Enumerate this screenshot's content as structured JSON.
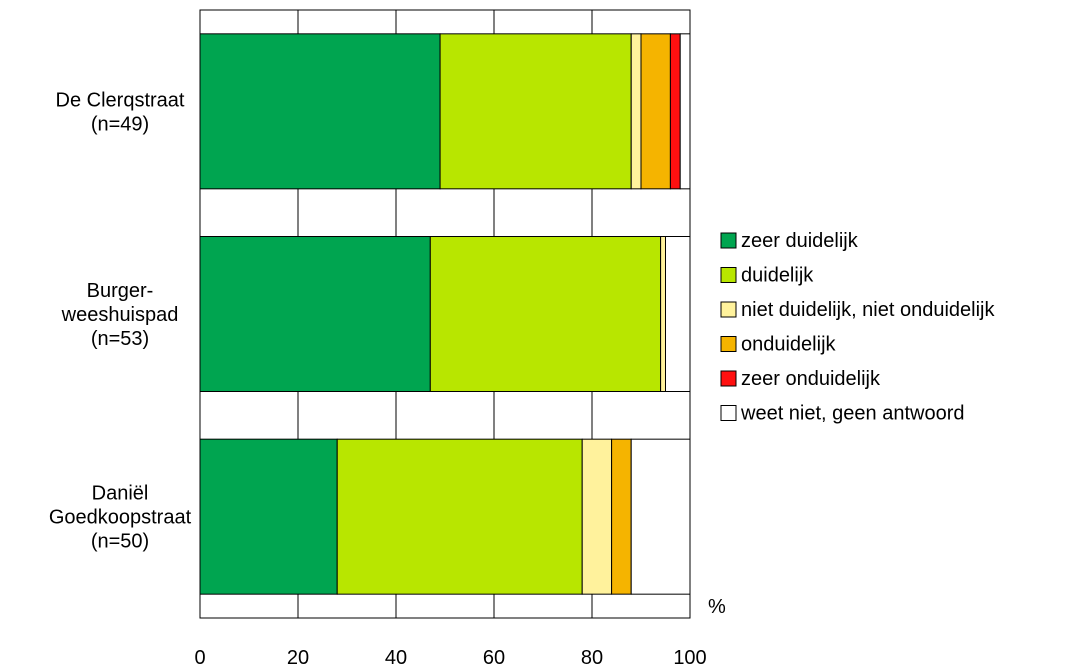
{
  "chart_data": {
    "type": "bar",
    "orientation": "horizontal",
    "stacked": true,
    "categories": [
      [
        "De Clerqstraat",
        "(n=49)"
      ],
      [
        "Burger-",
        "weeshuispad",
        "(n=53)"
      ],
      [
        "Daniël",
        "Goedkoopstraat",
        "(n=50)"
      ]
    ],
    "series": [
      {
        "name": "zeer duidelijk",
        "color": "#00a550",
        "values": [
          49,
          47,
          28
        ]
      },
      {
        "name": "duidelijk",
        "color": "#b8e600",
        "values": [
          39,
          47,
          50
        ]
      },
      {
        "name": "niet duidelijk, niet onduidelijk",
        "color": "#fff29c",
        "values": [
          2,
          1,
          6
        ]
      },
      {
        "name": "onduidelijk",
        "color": "#f5b400",
        "values": [
          6,
          0,
          4
        ]
      },
      {
        "name": "zeer onduidelijk",
        "color": "#ff1010",
        "values": [
          2,
          0,
          0
        ]
      },
      {
        "name": "weet niet, geen antwoord",
        "color": "#ffffff",
        "values": [
          2,
          5,
          12
        ]
      }
    ],
    "xlim": [
      0,
      100
    ],
    "xticks": [
      "0",
      "20",
      "40",
      "60",
      "80",
      "100"
    ],
    "xunit": "%",
    "grid": true,
    "legend_position": "right"
  }
}
